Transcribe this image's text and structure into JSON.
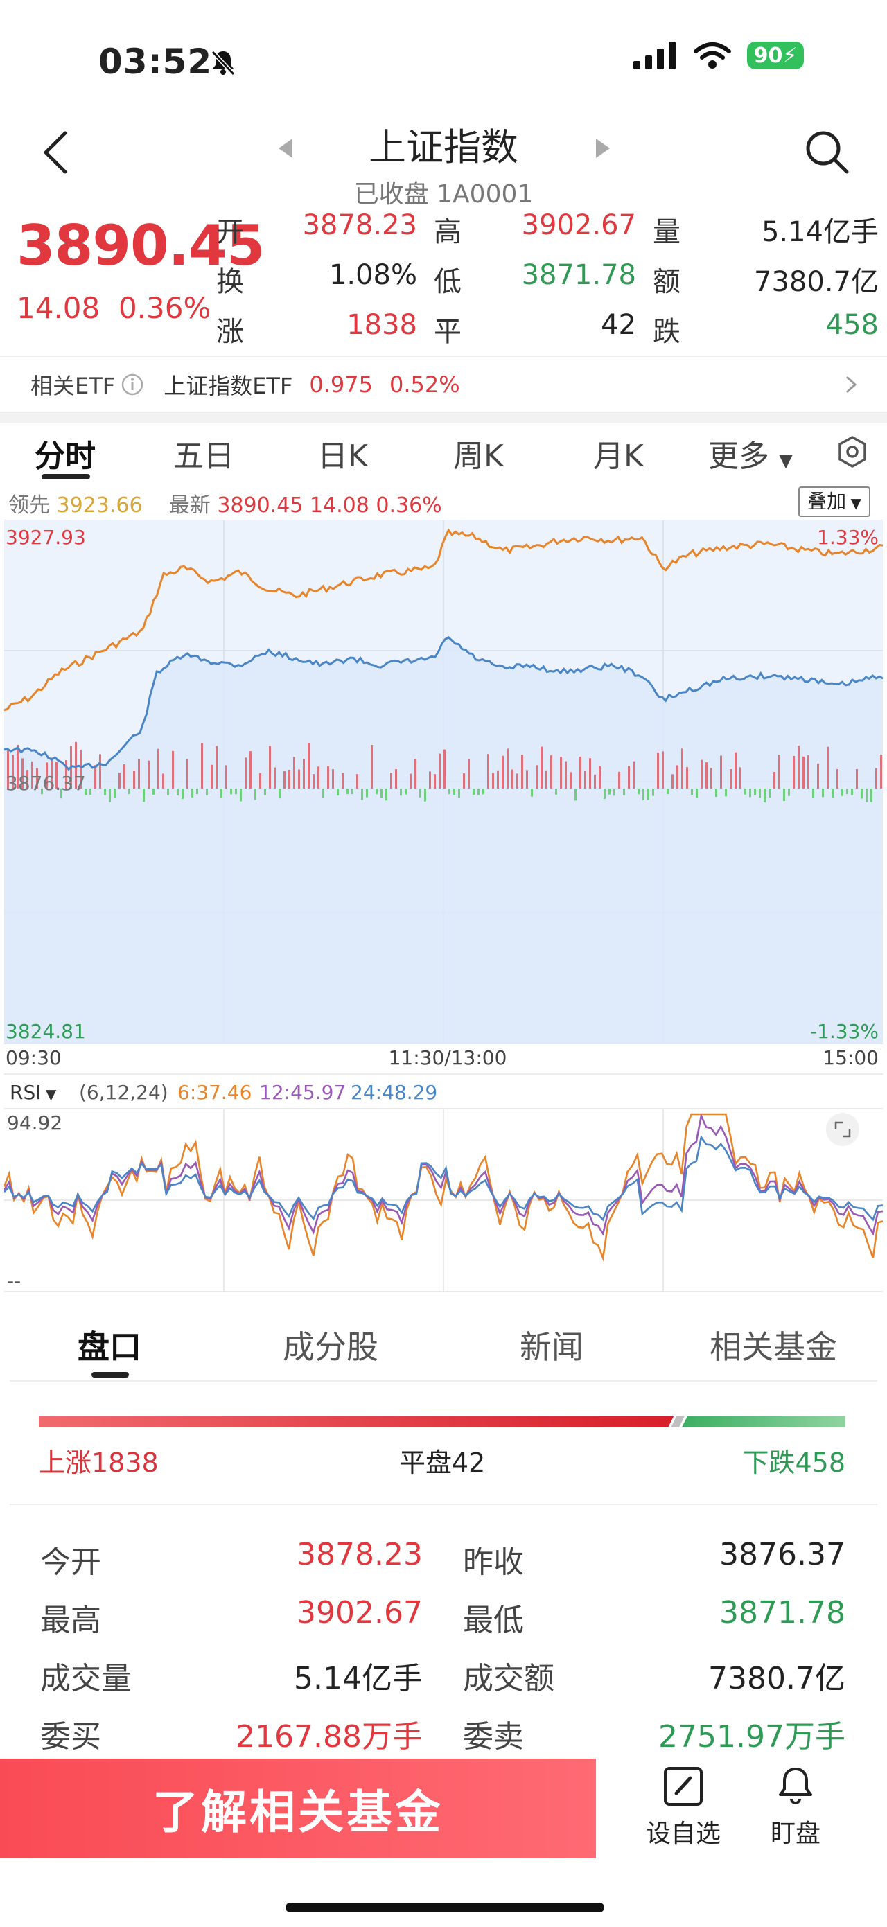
{
  "status_bar": {
    "time": "03:52",
    "battery": "90"
  },
  "header": {
    "title": "上证指数",
    "subtitle": "已收盘 1A0001"
  },
  "quote": {
    "price": "3890.45",
    "change": "14.08",
    "change_pct": "0.36%",
    "rows": [
      [
        {
          "label": "开",
          "value": "3878.23",
          "tone": "red"
        },
        {
          "label": "高",
          "value": "3902.67",
          "tone": "red"
        },
        {
          "label": "量",
          "value": "5.14亿手",
          "tone": "dark"
        }
      ],
      [
        {
          "label": "换",
          "value": "1.08%",
          "tone": "dark"
        },
        {
          "label": "低",
          "value": "3871.78",
          "tone": "green"
        },
        {
          "label": "额",
          "value": "7380.7亿",
          "tone": "dark"
        }
      ],
      [
        {
          "label": "涨",
          "value": "1838",
          "tone": "red"
        },
        {
          "label": "平",
          "value": "42",
          "tone": "dark"
        },
        {
          "label": "跌",
          "value": "458",
          "tone": "green"
        }
      ]
    ]
  },
  "etf": {
    "label": "相关ETF",
    "name": "上证指数ETF",
    "price": "0.975",
    "pct": "0.52%"
  },
  "chart_tabs": [
    "分时",
    "五日",
    "日K",
    "周K",
    "月K",
    "更多"
  ],
  "legend": {
    "leader_label": "领先",
    "leader_value": "3923.66",
    "latest_label": "最新",
    "latest_value": "3890.45",
    "latest_change": "14.08",
    "latest_pct": "0.36%",
    "overlay": "叠加"
  },
  "chart_axis": {
    "top": "3927.93",
    "mid": "3876.37",
    "bottom": "3824.81",
    "top_pct": "1.33%",
    "bottom_pct": "-1.33%",
    "t_start": "09:30",
    "t_mid": "11:30/13:00",
    "t_end": "15:00"
  },
  "rsi": {
    "name": "RSI",
    "params": "(6,12,24)",
    "r6": "6:37.46",
    "r12": "12:45.97",
    "r24": "24:48.29",
    "top": "94.92",
    "bottom": "--"
  },
  "section_tabs": [
    "盘口",
    "成分股",
    "新闻",
    "相关基金"
  ],
  "breadth": {
    "up": "上涨1838",
    "flat": "平盘42",
    "down": "下跌458",
    "up_share": 0.787,
    "down_share": 0.196
  },
  "stats": [
    {
      "l1": "今开",
      "v1": "3878.23",
      "t1": "red",
      "l2": "昨收",
      "v2": "3876.37",
      "t2": "dark"
    },
    {
      "l1": "最高",
      "v1": "3902.67",
      "t1": "red",
      "l2": "最低",
      "v2": "3871.78",
      "t2": "green"
    },
    {
      "l1": "成交量",
      "v1": "5.14亿手",
      "t1": "dark",
      "l2": "成交额",
      "v2": "7380.7亿",
      "t2": "dark"
    },
    {
      "l1": "委买",
      "v1": "2167.88万手",
      "t1": "red",
      "l2": "委卖",
      "v2": "2751.97万手",
      "t2": "green"
    }
  ],
  "bottom_bar": {
    "cta": "了解相关基金",
    "watchlist": "设自选",
    "monitor": "盯盘"
  },
  "colors": {
    "red": "#e0383e",
    "green": "#2f9a55",
    "orange": "#e8852a",
    "blue": "#4a86c6",
    "purple": "#9b59b6"
  }
}
